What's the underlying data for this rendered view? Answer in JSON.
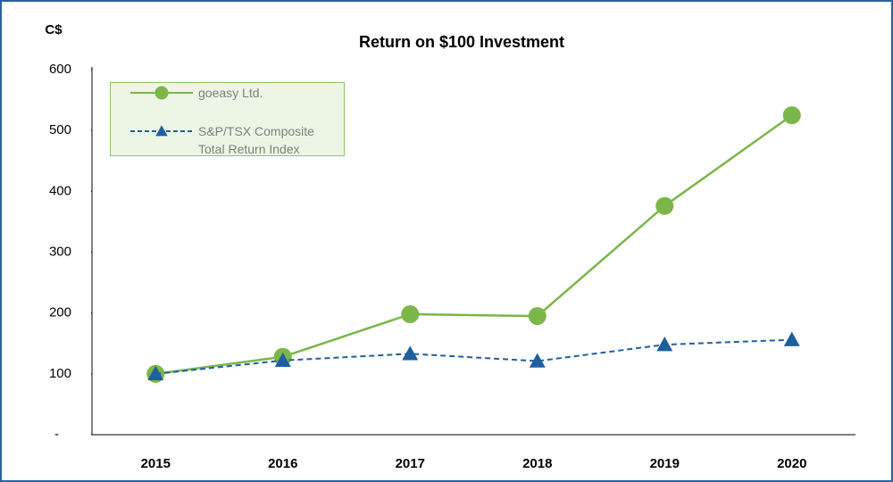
{
  "chart_data": {
    "type": "line",
    "title": "Return on $100 Investment",
    "y_unit": "C$",
    "categories": [
      "2015",
      "2016",
      "2017",
      "2018",
      "2019",
      "2020"
    ],
    "series": [
      {
        "name": "goeasy Ltd.",
        "color": "#7ab648",
        "marker": "circle",
        "dash": false,
        "values": [
          100,
          128,
          198,
          195,
          376,
          525
        ]
      },
      {
        "name": "S&P/TSX Composite Total Return Index",
        "color": "#1f5fa0",
        "marker": "triangle",
        "dash": true,
        "values": [
          100,
          122,
          133,
          121,
          148,
          156
        ]
      }
    ],
    "ylim": [
      0,
      600
    ],
    "yticks": [
      {
        "value": 0,
        "label": "-"
      },
      100,
      200,
      300,
      400,
      500,
      600
    ],
    "grid": false,
    "legend": "upper left"
  }
}
